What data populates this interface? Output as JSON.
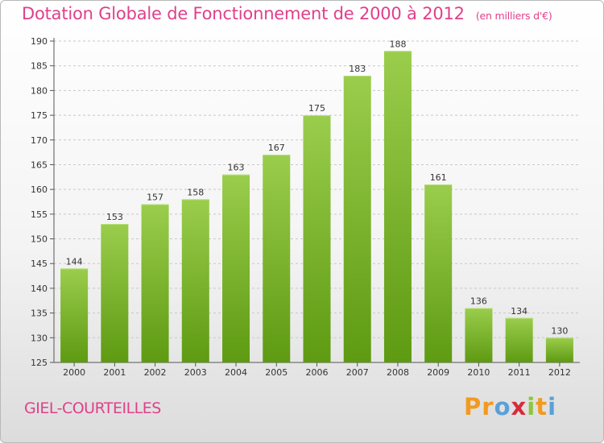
{
  "title": "Dotation Globale de Fonctionnement de 2000 à 2012",
  "subtitle": "(en milliers d'€)",
  "town": "GIEL-COURTEILLES",
  "logo": {
    "letters": [
      "P",
      "r",
      "o",
      "x",
      "i",
      "t",
      "i"
    ],
    "colors": [
      "#f39a1e",
      "#f39a1e",
      "#5aa0d8",
      "#d82b3a",
      "#8cc63f",
      "#f39a1e",
      "#5aa0d8"
    ]
  },
  "colors": {
    "bar_top": "#9acd4c",
    "bar_bottom": "#5e9a12",
    "title": "#e0408a"
  },
  "chart_data": {
    "type": "bar",
    "title": "Dotation Globale de Fonctionnement de 2000 à 2012",
    "categories": [
      "2000",
      "2001",
      "2002",
      "2003",
      "2004",
      "2005",
      "2006",
      "2007",
      "2008",
      "2009",
      "2010",
      "2011",
      "2012"
    ],
    "values": [
      144,
      153,
      157,
      158,
      163,
      167,
      175,
      183,
      188,
      161,
      136,
      134,
      130
    ],
    "ylim": [
      125,
      190
    ],
    "yticks": [
      125,
      130,
      135,
      140,
      145,
      150,
      155,
      160,
      165,
      170,
      175,
      180,
      185,
      190
    ],
    "grid": true,
    "xlabel": "",
    "ylabel": ""
  }
}
